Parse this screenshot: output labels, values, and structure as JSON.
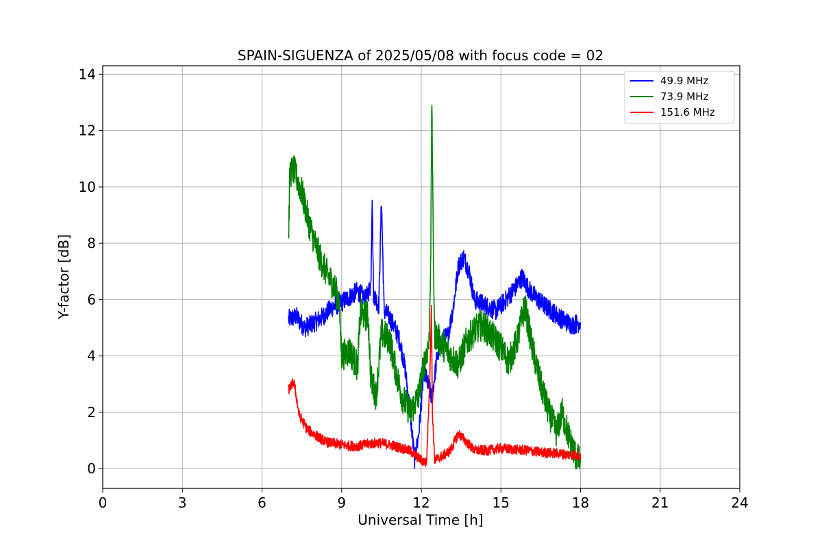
{
  "chart_data": {
    "type": "line",
    "title": "SPAIN-SIGUENZA of 2025/05/08 with focus code = 02",
    "xlabel": "Universal Time [h]",
    "ylabel": "Y-factor [dB]",
    "xlim": [
      0,
      24
    ],
    "ylim": [
      -0.7,
      14.3
    ],
    "xticks": [
      "0",
      "3",
      "6",
      "9",
      "12",
      "15",
      "18",
      "21",
      "24"
    ],
    "yticks": [
      "0",
      "2",
      "4",
      "6",
      "8",
      "10",
      "12",
      "14"
    ],
    "grid": true,
    "legend_position": "top-right",
    "series": [
      {
        "name": "  49.9 MHz",
        "color": "#0000ff",
        "noise": 0.35,
        "points": [
          [
            7.0,
            5.3
          ],
          [
            7.3,
            5.4
          ],
          [
            7.6,
            5.0
          ],
          [
            8.0,
            5.2
          ],
          [
            8.3,
            5.4
          ],
          [
            8.6,
            5.7
          ],
          [
            9.0,
            5.9
          ],
          [
            9.3,
            6.1
          ],
          [
            9.6,
            6.3
          ],
          [
            9.9,
            6.0
          ],
          [
            10.1,
            6.5
          ],
          [
            10.15,
            9.8
          ],
          [
            10.2,
            6.2
          ],
          [
            10.4,
            5.8
          ],
          [
            10.5,
            9.6
          ],
          [
            10.6,
            5.6
          ],
          [
            10.8,
            5.4
          ],
          [
            11.0,
            5.0
          ],
          [
            11.2,
            4.5
          ],
          [
            11.4,
            3.5
          ],
          [
            11.6,
            1.8
          ],
          [
            11.75,
            0.3
          ],
          [
            11.9,
            1.2
          ],
          [
            12.1,
            3.5
          ],
          [
            12.4,
            2.5
          ],
          [
            12.6,
            4.0
          ],
          [
            12.8,
            4.6
          ],
          [
            13.0,
            4.7
          ],
          [
            13.2,
            5.7
          ],
          [
            13.4,
            7.2
          ],
          [
            13.6,
            7.5
          ],
          [
            13.8,
            7.0
          ],
          [
            14.0,
            6.0
          ],
          [
            14.4,
            5.8
          ],
          [
            14.8,
            5.6
          ],
          [
            15.2,
            6.0
          ],
          [
            15.6,
            6.5
          ],
          [
            15.8,
            6.8
          ],
          [
            16.1,
            6.3
          ],
          [
            16.5,
            5.9
          ],
          [
            16.9,
            5.6
          ],
          [
            17.3,
            5.3
          ],
          [
            17.7,
            5.1
          ],
          [
            18.0,
            5.2
          ]
        ]
      },
      {
        "name": "  73.9 MHz",
        "color": "#008000",
        "noise": 0.55,
        "points": [
          [
            7.0,
            8.2
          ],
          [
            7.05,
            10.5
          ],
          [
            7.2,
            10.6
          ],
          [
            7.5,
            9.8
          ],
          [
            7.8,
            8.6
          ],
          [
            8.1,
            7.7
          ],
          [
            8.4,
            7.0
          ],
          [
            8.7,
            6.5
          ],
          [
            8.9,
            6.0
          ],
          [
            9.0,
            4.0
          ],
          [
            9.3,
            4.2
          ],
          [
            9.6,
            3.6
          ],
          [
            9.7,
            5.5
          ],
          [
            10.0,
            5.4
          ],
          [
            10.1,
            3.2
          ],
          [
            10.3,
            2.6
          ],
          [
            10.5,
            4.8
          ],
          [
            10.8,
            4.6
          ],
          [
            11.1,
            3.2
          ],
          [
            11.3,
            2.5
          ],
          [
            11.6,
            2.0
          ],
          [
            11.9,
            2.6
          ],
          [
            12.1,
            3.7
          ],
          [
            12.3,
            4.5
          ],
          [
            12.36,
            8.0
          ],
          [
            12.4,
            13.2
          ],
          [
            12.44,
            9.0
          ],
          [
            12.5,
            4.8
          ],
          [
            12.8,
            4.4
          ],
          [
            13.1,
            4.0
          ],
          [
            13.4,
            3.7
          ],
          [
            13.7,
            4.5
          ],
          [
            14.0,
            4.9
          ],
          [
            14.3,
            5.1
          ],
          [
            14.6,
            4.8
          ],
          [
            15.0,
            4.3
          ],
          [
            15.3,
            3.8
          ],
          [
            15.6,
            4.5
          ],
          [
            15.9,
            5.8
          ],
          [
            16.2,
            4.2
          ],
          [
            16.5,
            3.0
          ],
          [
            16.8,
            2.0
          ],
          [
            17.1,
            1.3
          ],
          [
            17.3,
            2.0
          ],
          [
            17.6,
            1.0
          ],
          [
            17.8,
            0.5
          ],
          [
            18.0,
            0.2
          ]
        ]
      },
      {
        "name": " 151.6 MHz",
        "color": "#ff0000",
        "noise": 0.18,
        "points": [
          [
            7.0,
            2.8
          ],
          [
            7.2,
            3.1
          ],
          [
            7.4,
            1.9
          ],
          [
            7.7,
            1.4
          ],
          [
            8.0,
            1.2
          ],
          [
            8.4,
            0.95
          ],
          [
            8.8,
            0.88
          ],
          [
            9.2,
            0.82
          ],
          [
            9.6,
            0.8
          ],
          [
            10.0,
            0.88
          ],
          [
            10.4,
            0.92
          ],
          [
            10.8,
            0.85
          ],
          [
            11.2,
            0.75
          ],
          [
            11.6,
            0.62
          ],
          [
            12.0,
            0.3
          ],
          [
            12.2,
            0.2
          ],
          [
            12.33,
            3.5
          ],
          [
            12.38,
            5.8
          ],
          [
            12.42,
            2.0
          ],
          [
            12.5,
            0.3
          ],
          [
            12.8,
            0.45
          ],
          [
            13.1,
            0.65
          ],
          [
            13.4,
            1.25
          ],
          [
            13.7,
            0.95
          ],
          [
            14.0,
            0.65
          ],
          [
            14.5,
            0.65
          ],
          [
            15.0,
            0.72
          ],
          [
            15.5,
            0.68
          ],
          [
            16.0,
            0.65
          ],
          [
            16.5,
            0.58
          ],
          [
            17.0,
            0.55
          ],
          [
            17.5,
            0.5
          ],
          [
            18.0,
            0.48
          ]
        ]
      }
    ]
  }
}
